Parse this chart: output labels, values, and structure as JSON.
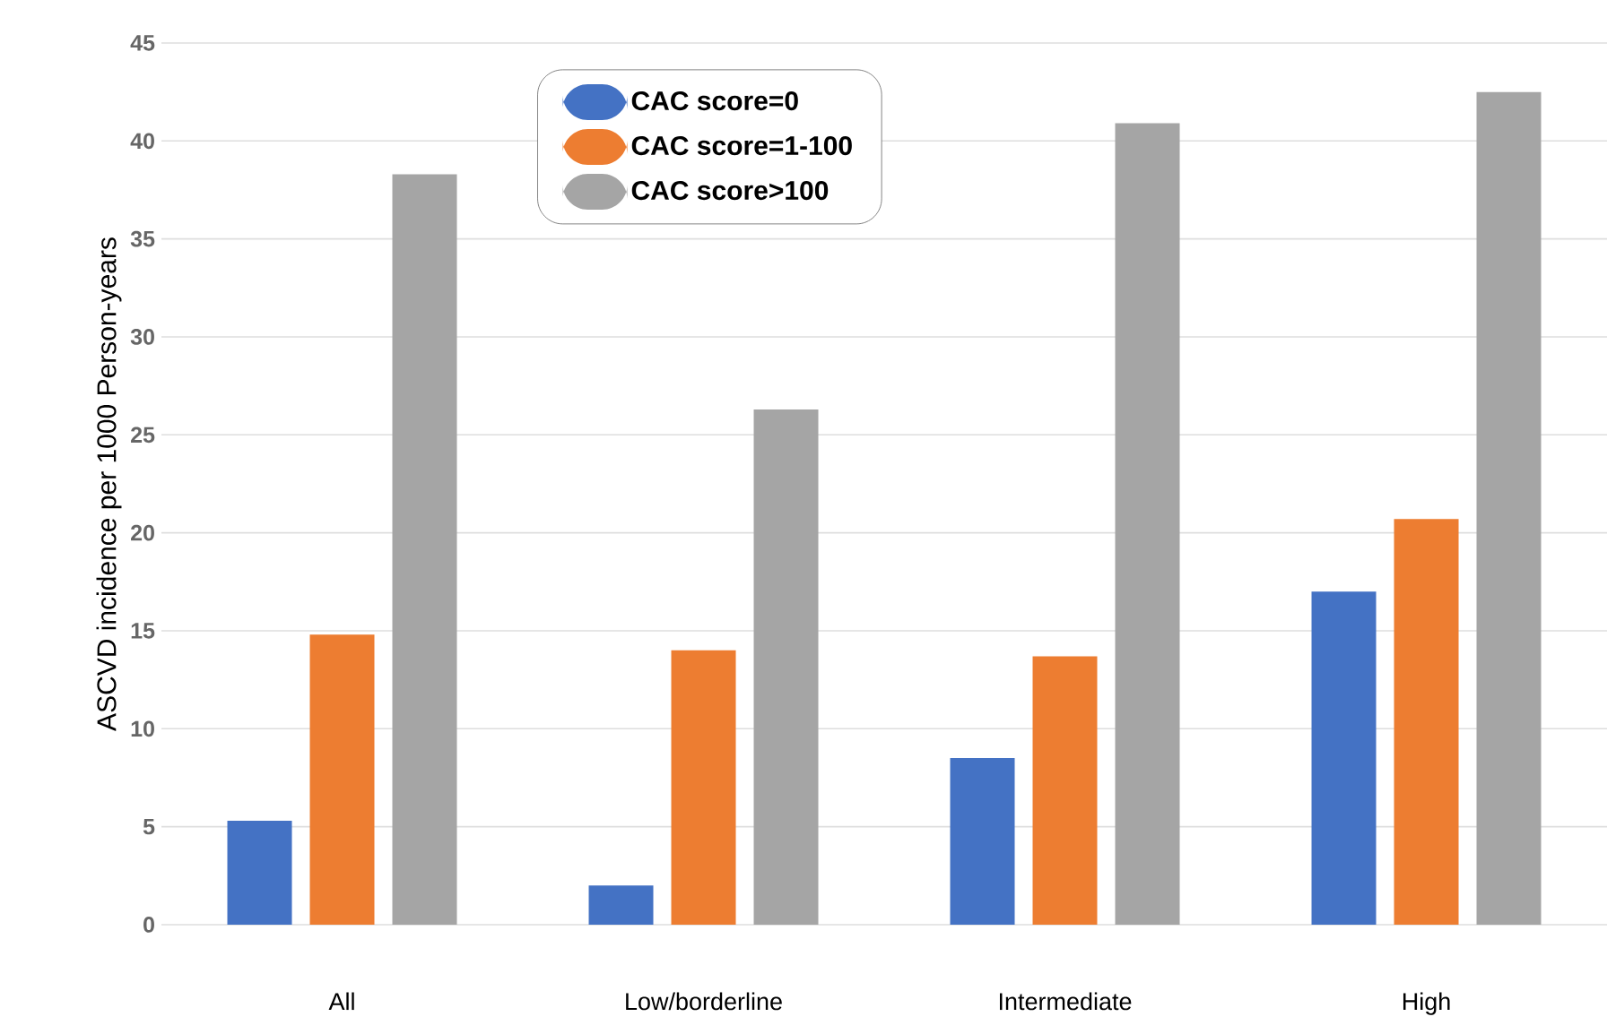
{
  "chart_data": {
    "type": "bar",
    "ylabel": "ASCVD incidence per 1000 Person-years",
    "categories": [
      "All",
      "Low/borderline",
      "Intermediate",
      "High"
    ],
    "series": [
      {
        "name": "CAC score=0",
        "color": "#4472c4",
        "values": [
          5.3,
          2.0,
          8.5,
          17.0
        ]
      },
      {
        "name": "CAC score=1-100",
        "color": "#ed7d31",
        "values": [
          14.8,
          14.0,
          13.7,
          20.7
        ]
      },
      {
        "name": "CAC score>100",
        "color": "#a5a5a5",
        "values": [
          38.3,
          26.3,
          40.9,
          42.5
        ]
      }
    ],
    "ylim": [
      0,
      45
    ],
    "yticks": [
      0,
      5,
      10,
      15,
      20,
      25,
      30,
      35,
      40,
      45
    ],
    "grid": "y",
    "legend": "top"
  }
}
